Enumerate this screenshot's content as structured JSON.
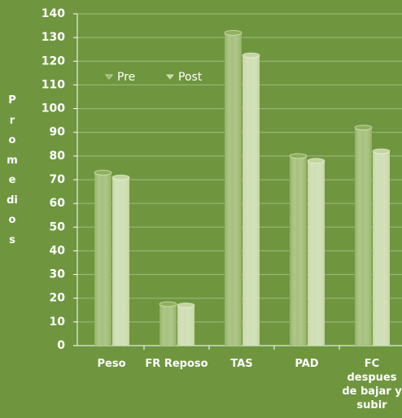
{
  "chart_data": {
    "type": "bar",
    "y_label": "Promedios",
    "categories": [
      "Peso",
      "FR Reposo",
      "TAS",
      "PAD",
      "FC despues de bajar y subir"
    ],
    "series": [
      {
        "name": "Pre",
        "color": "#8fb05c",
        "values": [
          73,
          17.5,
          132,
          80,
          92
        ]
      },
      {
        "name": "Post",
        "color": "#c2d6a0",
        "values": [
          71,
          17,
          122.5,
          78,
          82
        ]
      }
    ],
    "ylim": [
      0,
      140
    ],
    "yticks": [
      0,
      10,
      20,
      30,
      40,
      50,
      60,
      70,
      80,
      90,
      100,
      110,
      120,
      130,
      140
    ],
    "grid": true,
    "legend": "top-left"
  }
}
